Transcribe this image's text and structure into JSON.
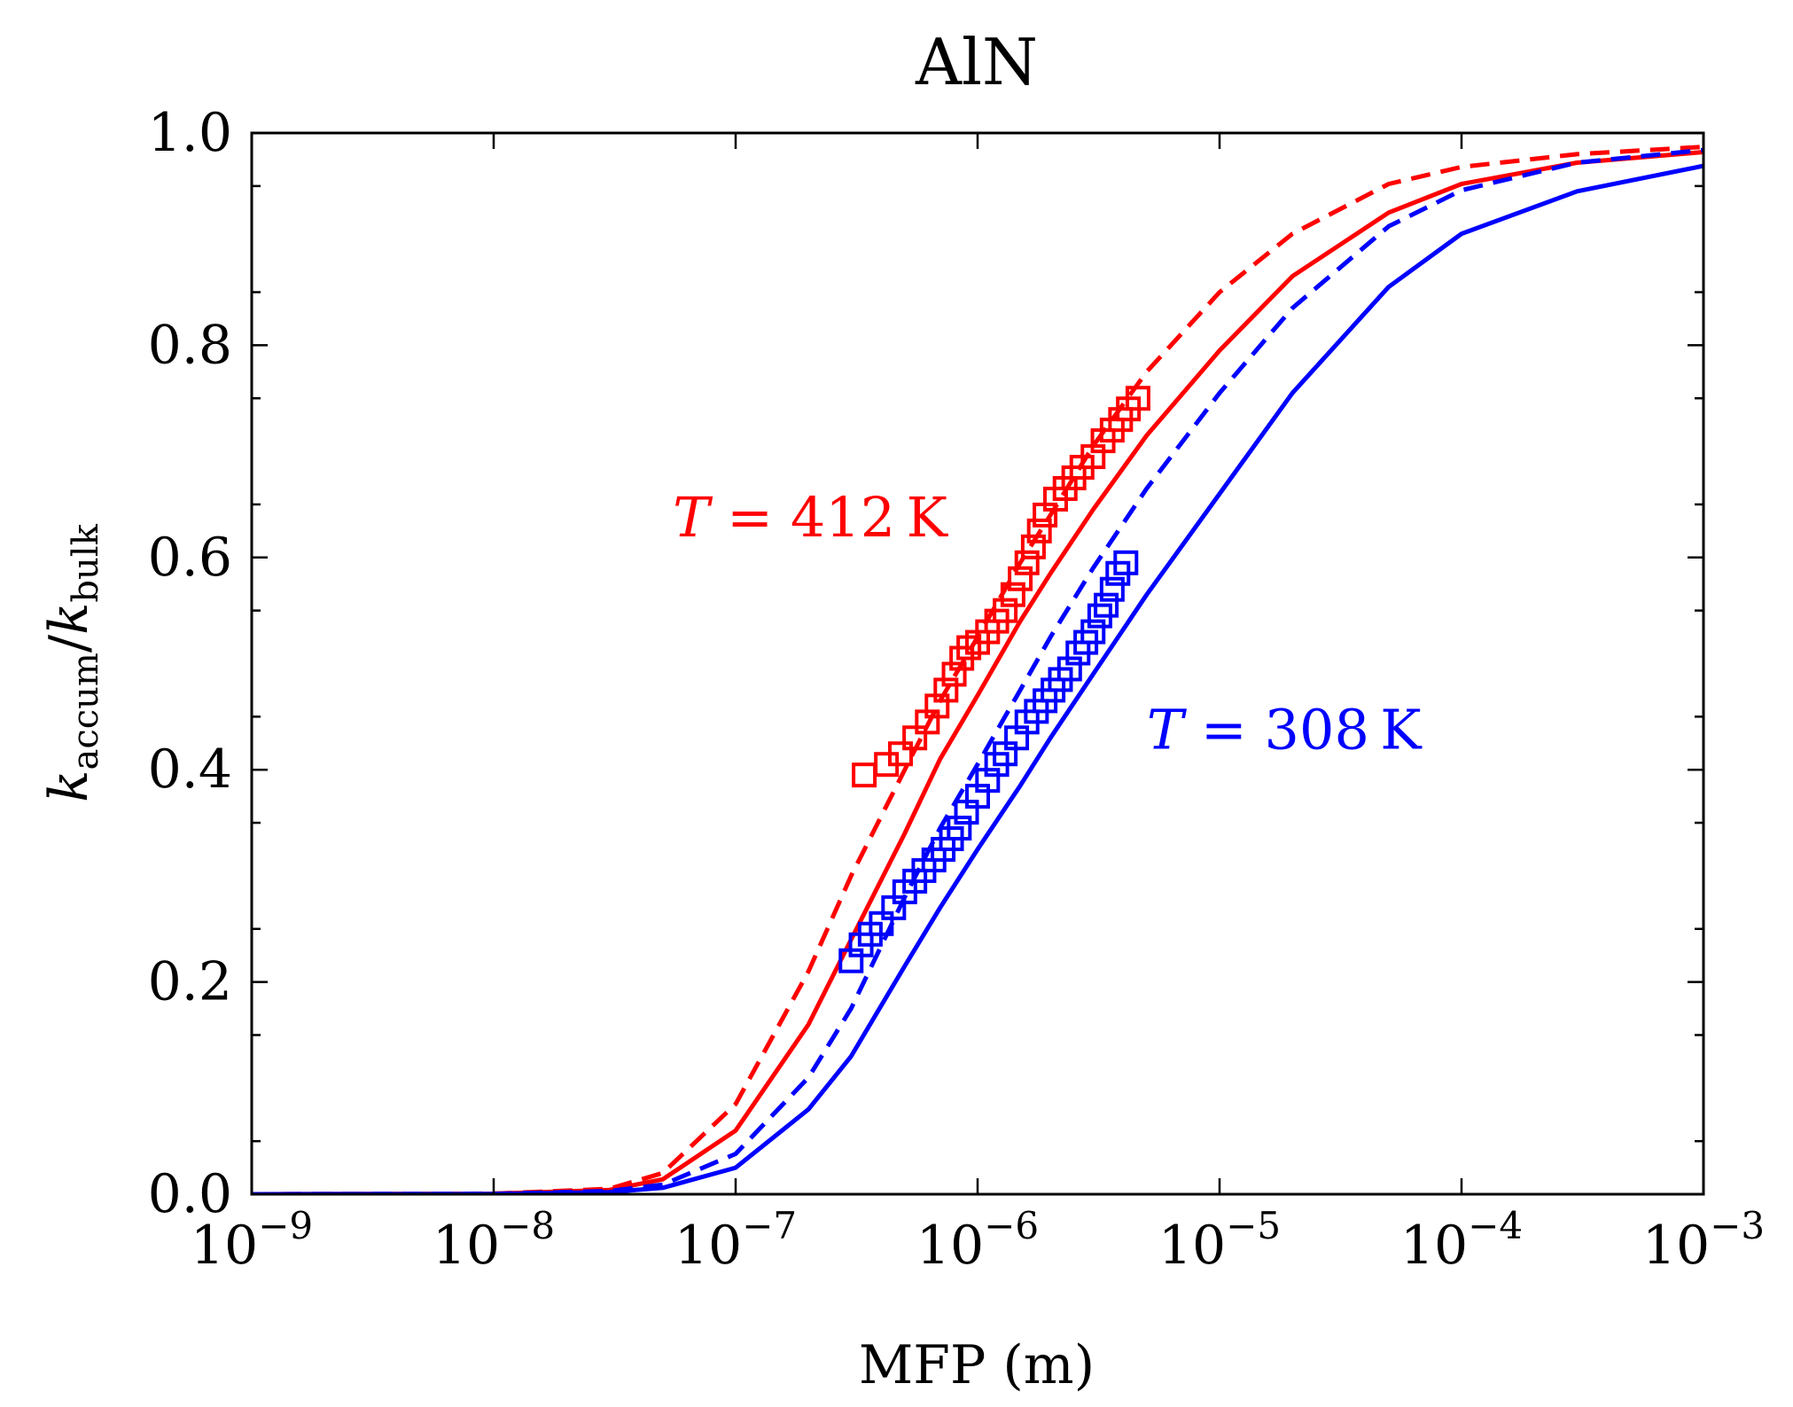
{
  "chart_data": {
    "type": "line",
    "title": "AlN",
    "xlabel": "MFP (m)",
    "ylabel": {
      "base1": "k",
      "sub1": "accum",
      "slash": "/",
      "base2": "k",
      "sub2": "bulk"
    },
    "x_scale": "log",
    "xlim": [
      1e-09,
      0.001
    ],
    "ylim": [
      0.0,
      1.0
    ],
    "x_ticks": [
      {
        "base": "10",
        "exp": "−9",
        "value": 1e-09
      },
      {
        "base": "10",
        "exp": "−8",
        "value": 1e-08
      },
      {
        "base": "10",
        "exp": "−7",
        "value": 1e-07
      },
      {
        "base": "10",
        "exp": "−6",
        "value": 1e-06
      },
      {
        "base": "10",
        "exp": "−5",
        "value": 1e-05
      },
      {
        "base": "10",
        "exp": "−4",
        "value": 0.0001
      },
      {
        "base": "10",
        "exp": "−3",
        "value": 0.001
      }
    ],
    "y_ticks": [
      {
        "label": "0.0",
        "value": 0.0
      },
      {
        "label": "0.2",
        "value": 0.2
      },
      {
        "label": "0.4",
        "value": 0.4
      },
      {
        "label": "0.6",
        "value": 0.6
      },
      {
        "label": "0.8",
        "value": 0.8
      },
      {
        "label": "1.0",
        "value": 1.0
      }
    ],
    "grid": false,
    "colors": {
      "red": "#ff0000",
      "blue": "#0000ff",
      "axis": "#000000"
    },
    "annotations": [
      {
        "var": "T",
        "eq": " = ",
        "value": "412",
        "unit": "K",
        "color": "#ff0000",
        "x": 5.5e-08,
        "y": 0.62
      },
      {
        "var": "T",
        "eq": " = ",
        "value": "308",
        "unit": "K",
        "color": "#0000ff",
        "x": 5e-06,
        "y": 0.42
      }
    ],
    "series": [
      {
        "color": "#ff0000",
        "style": "solid",
        "points": [
          [
            1e-09,
            0.0
          ],
          [
            1e-08,
            0.0005
          ],
          [
            3e-08,
            0.004
          ],
          [
            5e-08,
            0.014
          ],
          [
            1e-07,
            0.06
          ],
          [
            2e-07,
            0.16
          ],
          [
            3e-07,
            0.24
          ],
          [
            5e-07,
            0.34
          ],
          [
            7e-07,
            0.41
          ],
          [
            1e-06,
            0.47
          ],
          [
            1.5e-06,
            0.54
          ],
          [
            2e-06,
            0.585
          ],
          [
            3e-06,
            0.645
          ],
          [
            5e-06,
            0.715
          ],
          [
            1e-05,
            0.795
          ],
          [
            2e-05,
            0.865
          ],
          [
            5e-05,
            0.925
          ],
          [
            0.0001,
            0.952
          ],
          [
            0.0003,
            0.972
          ],
          [
            0.001,
            0.982
          ]
        ]
      },
      {
        "color": "#ff0000",
        "style": "dashed",
        "points": [
          [
            1e-09,
            0.0
          ],
          [
            1e-08,
            0.0005
          ],
          [
            3e-08,
            0.005
          ],
          [
            5e-08,
            0.02
          ],
          [
            1e-07,
            0.085
          ],
          [
            2e-07,
            0.21
          ],
          [
            3e-07,
            0.3
          ],
          [
            5e-07,
            0.4
          ],
          [
            7e-07,
            0.465
          ],
          [
            1e-06,
            0.525
          ],
          [
            1.5e-06,
            0.595
          ],
          [
            2e-06,
            0.64
          ],
          [
            3e-06,
            0.705
          ],
          [
            5e-06,
            0.775
          ],
          [
            1e-05,
            0.85
          ],
          [
            2e-05,
            0.905
          ],
          [
            5e-05,
            0.952
          ],
          [
            0.0001,
            0.968
          ],
          [
            0.0003,
            0.98
          ],
          [
            0.001,
            0.987
          ]
        ]
      },
      {
        "color": "#0000ff",
        "style": "solid",
        "points": [
          [
            1e-09,
            0.0
          ],
          [
            1e-08,
            0.0002
          ],
          [
            3e-08,
            0.002
          ],
          [
            5e-08,
            0.006
          ],
          [
            1e-07,
            0.025
          ],
          [
            2e-07,
            0.08
          ],
          [
            3e-07,
            0.13
          ],
          [
            5e-07,
            0.215
          ],
          [
            7e-07,
            0.27
          ],
          [
            1e-06,
            0.325
          ],
          [
            1.5e-06,
            0.385
          ],
          [
            2e-06,
            0.43
          ],
          [
            3e-06,
            0.49
          ],
          [
            5e-06,
            0.565
          ],
          [
            1e-05,
            0.66
          ],
          [
            2e-05,
            0.755
          ],
          [
            5e-05,
            0.855
          ],
          [
            0.0001,
            0.905
          ],
          [
            0.0003,
            0.945
          ],
          [
            0.001,
            0.969
          ]
        ]
      },
      {
        "color": "#0000ff",
        "style": "dashed",
        "points": [
          [
            1e-09,
            0.0
          ],
          [
            1e-08,
            0.0003
          ],
          [
            3e-08,
            0.003
          ],
          [
            5e-08,
            0.009
          ],
          [
            1e-07,
            0.038
          ],
          [
            2e-07,
            0.11
          ],
          [
            3e-07,
            0.175
          ],
          [
            5e-07,
            0.28
          ],
          [
            7e-07,
            0.345
          ],
          [
            1e-06,
            0.405
          ],
          [
            1.5e-06,
            0.475
          ],
          [
            2e-06,
            0.525
          ],
          [
            3e-06,
            0.59
          ],
          [
            5e-06,
            0.665
          ],
          [
            1e-05,
            0.755
          ],
          [
            2e-05,
            0.835
          ],
          [
            5e-05,
            0.912
          ],
          [
            0.0001,
            0.946
          ],
          [
            0.0003,
            0.972
          ],
          [
            0.001,
            0.984
          ]
        ]
      },
      {
        "color": "#ff0000",
        "style": "markers",
        "points": [
          [
            3.4e-07,
            0.395
          ],
          [
            4.2e-07,
            0.405
          ],
          [
            4.8e-07,
            0.415
          ],
          [
            5.5e-07,
            0.43
          ],
          [
            6.2e-07,
            0.445
          ],
          [
            6.8e-07,
            0.46
          ],
          [
            7.4e-07,
            0.475
          ],
          [
            8e-07,
            0.49
          ],
          [
            8.6e-07,
            0.505
          ],
          [
            9.2e-07,
            0.515
          ],
          [
            1e-06,
            0.52
          ],
          [
            1.1e-06,
            0.53
          ],
          [
            1.2e-06,
            0.54
          ],
          [
            1.3e-06,
            0.55
          ],
          [
            1.4e-06,
            0.565
          ],
          [
            1.5e-06,
            0.58
          ],
          [
            1.6e-06,
            0.595
          ],
          [
            1.7e-06,
            0.61
          ],
          [
            1.8e-06,
            0.625
          ],
          [
            1.9e-06,
            0.64
          ],
          [
            2.1e-06,
            0.655
          ],
          [
            2.3e-06,
            0.665
          ],
          [
            2.5e-06,
            0.675
          ],
          [
            2.7e-06,
            0.685
          ],
          [
            3e-06,
            0.695
          ],
          [
            3.3e-06,
            0.71
          ],
          [
            3.6e-06,
            0.72
          ],
          [
            3.9e-06,
            0.73
          ],
          [
            4.2e-06,
            0.74
          ],
          [
            4.6e-06,
            0.75
          ]
        ]
      },
      {
        "color": "#0000ff",
        "style": "markers",
        "points": [
          [
            3e-07,
            0.22
          ],
          [
            3.3e-07,
            0.235
          ],
          [
            3.6e-07,
            0.245
          ],
          [
            4e-07,
            0.255
          ],
          [
            4.5e-07,
            0.27
          ],
          [
            5e-07,
            0.285
          ],
          [
            5.5e-07,
            0.295
          ],
          [
            6e-07,
            0.305
          ],
          [
            6.6e-07,
            0.315
          ],
          [
            7.2e-07,
            0.325
          ],
          [
            7.8e-07,
            0.335
          ],
          [
            8.4e-07,
            0.345
          ],
          [
            9e-07,
            0.36
          ],
          [
            1e-06,
            0.375
          ],
          [
            1.1e-06,
            0.39
          ],
          [
            1.2e-06,
            0.405
          ],
          [
            1.3e-06,
            0.415
          ],
          [
            1.45e-06,
            0.43
          ],
          [
            1.6e-06,
            0.445
          ],
          [
            1.75e-06,
            0.455
          ],
          [
            1.9e-06,
            0.465
          ],
          [
            2.05e-06,
            0.475
          ],
          [
            2.2e-06,
            0.485
          ],
          [
            2.4e-06,
            0.495
          ],
          [
            2.6e-06,
            0.51
          ],
          [
            2.8e-06,
            0.52
          ],
          [
            3e-06,
            0.53
          ],
          [
            3.2e-06,
            0.545
          ],
          [
            3.4e-06,
            0.555
          ],
          [
            3.6e-06,
            0.57
          ],
          [
            3.8e-06,
            0.585
          ],
          [
            4.1e-06,
            0.595
          ]
        ]
      }
    ]
  }
}
